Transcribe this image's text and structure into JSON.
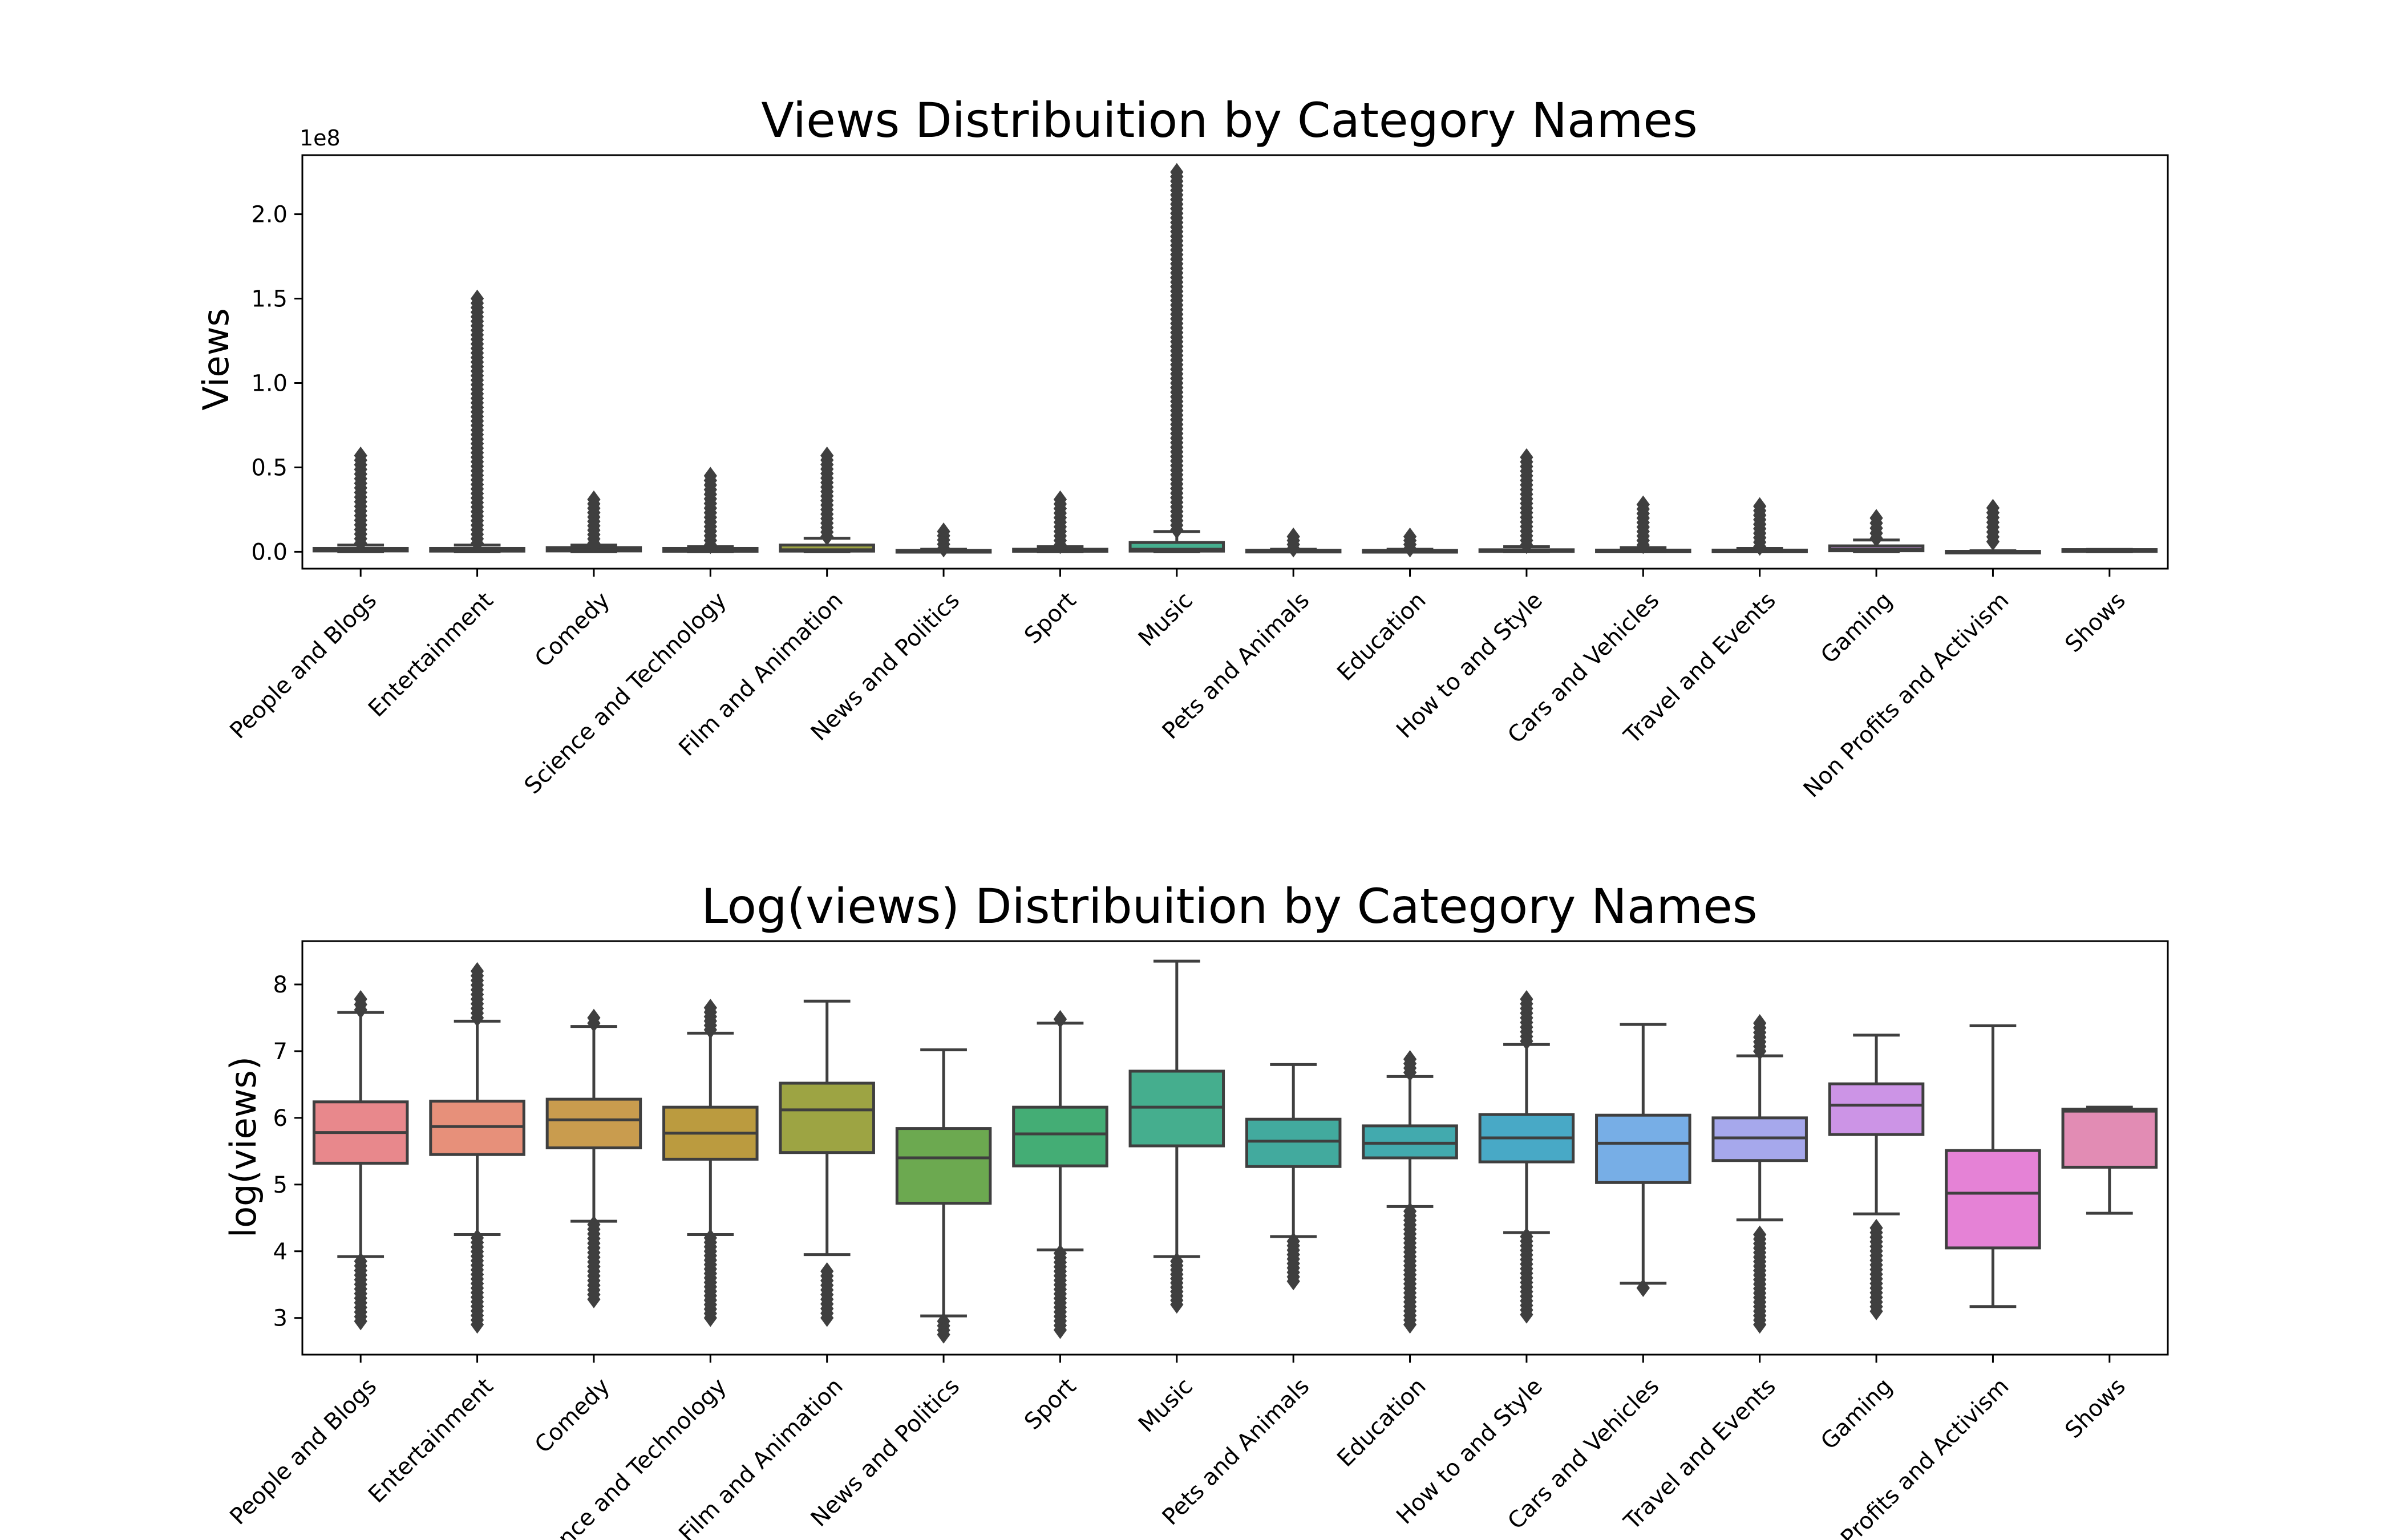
{
  "chart_data": [
    {
      "type": "box",
      "title": "Views Distribuition by Category Names",
      "xlabel": "",
      "ylabel": "Views",
      "y_offset_label": "1e8",
      "y_scale_factor": 100000000,
      "ylim": [
        -0.1,
        2.35
      ],
      "yticks": [
        0.0,
        0.5,
        1.0,
        1.5,
        2.0
      ],
      "ytick_labels": [
        "0.0",
        "0.5",
        "1.0",
        "1.5",
        "2.0"
      ],
      "grid": false,
      "categories": [
        "People and Blogs",
        "Entertainment",
        "Comedy",
        "Science and Technology",
        "Film and Animation",
        "News and Politics",
        "Sport",
        "Music",
        "Pets and Animals",
        "Education",
        "How to and Style",
        "Cars and Vehicles",
        "Travel and Events",
        "Gaming",
        "Non Profits and Activism",
        "Shows"
      ],
      "colors": [
        "#e8888c",
        "#e7907a",
        "#c99c4e",
        "#bb9b3f",
        "#9da443",
        "#6ca950",
        "#44ad75",
        "#45ae8e",
        "#42aa9e",
        "#42aaae",
        "#48a9c6",
        "#77aee6",
        "#a6a8ec",
        "#cc94e6",
        "#e582d6",
        "#e28cb4"
      ],
      "boxes": [
        {
          "q1": 0.005,
          "median": 0.012,
          "q3": 0.02,
          "whisker_low": 0.0,
          "whisker_high": 0.04,
          "outliers_min": 0.05,
          "outliers_max": 0.57
        },
        {
          "q1": 0.004,
          "median": 0.01,
          "q3": 0.02,
          "whisker_low": 0.0,
          "whisker_high": 0.04,
          "outliers_min": 0.05,
          "outliers_max": 1.5
        },
        {
          "q1": 0.005,
          "median": 0.011,
          "q3": 0.025,
          "whisker_low": 0.0,
          "whisker_high": 0.04,
          "outliers_min": 0.05,
          "outliers_max": 0.31
        },
        {
          "q1": 0.003,
          "median": 0.008,
          "q3": 0.02,
          "whisker_low": 0.0,
          "whisker_high": 0.03,
          "outliers_min": 0.04,
          "outliers_max": 0.45
        },
        {
          "q1": 0.004,
          "median": 0.012,
          "q3": 0.04,
          "whisker_low": 0.0,
          "whisker_high": 0.08,
          "outliers_min": 0.09,
          "outliers_max": 0.57
        },
        {
          "q1": 0.001,
          "median": 0.003,
          "q3": 0.008,
          "whisker_low": 0.0,
          "whisker_high": 0.015,
          "outliers_min": 0.02,
          "outliers_max": 0.12
        },
        {
          "q1": 0.003,
          "median": 0.006,
          "q3": 0.015,
          "whisker_low": 0.0,
          "whisker_high": 0.03,
          "outliers_min": 0.04,
          "outliers_max": 0.31
        },
        {
          "q1": 0.004,
          "median": 0.015,
          "q3": 0.055,
          "whisker_low": 0.0,
          "whisker_high": 0.12,
          "outliers_min": 0.13,
          "outliers_max": 2.25
        },
        {
          "q1": 0.002,
          "median": 0.004,
          "q3": 0.009,
          "whisker_low": 0.0,
          "whisker_high": 0.015,
          "outliers_min": 0.02,
          "outliers_max": 0.09
        },
        {
          "q1": 0.002,
          "median": 0.004,
          "q3": 0.008,
          "whisker_low": 0.0,
          "whisker_high": 0.015,
          "outliers_min": 0.02,
          "outliers_max": 0.09
        },
        {
          "q1": 0.002,
          "median": 0.006,
          "q3": 0.012,
          "whisker_low": 0.0,
          "whisker_high": 0.03,
          "outliers_min": 0.04,
          "outliers_max": 0.56
        },
        {
          "q1": 0.001,
          "median": 0.004,
          "q3": 0.01,
          "whisker_low": 0.0,
          "whisker_high": 0.025,
          "outliers_min": 0.04,
          "outliers_max": 0.28
        },
        {
          "q1": 0.002,
          "median": 0.005,
          "q3": 0.01,
          "whisker_low": 0.0,
          "whisker_high": 0.02,
          "outliers_min": 0.03,
          "outliers_max": 0.27
        },
        {
          "q1": 0.006,
          "median": 0.015,
          "q3": 0.035,
          "whisker_low": 0.0,
          "whisker_high": 0.07,
          "outliers_min": 0.08,
          "outliers_max": 0.2
        },
        {
          "q1": 0.0,
          "median": 0.001,
          "q3": 0.003,
          "whisker_low": 0.0,
          "whisker_high": 0.006,
          "outliers_min": 0.06,
          "outliers_max": 0.26
        },
        {
          "q1": 0.002,
          "median": 0.012,
          "q3": 0.013,
          "whisker_low": 0.0,
          "whisker_high": 0.014,
          "outliers_min": null,
          "outliers_max": null
        }
      ]
    },
    {
      "type": "box",
      "title": "Log(views) Distribuition by Category Names",
      "xlabel": "",
      "ylabel": "log(views)",
      "ylim": [
        2.45,
        8.65
      ],
      "yticks": [
        3,
        4,
        5,
        6,
        7,
        8
      ],
      "ytick_labels": [
        "3",
        "4",
        "5",
        "6",
        "7",
        "8"
      ],
      "grid": false,
      "categories": [
        "People and Blogs",
        "Entertainment",
        "Comedy",
        "Science and Technology",
        "Film and Animation",
        "News and Politics",
        "Sport",
        "Music",
        "Pets and Animals",
        "Education",
        "How to and Style",
        "Cars and Vehicles",
        "Travel and Events",
        "Gaming",
        "Non Profits and Activism",
        "Shows"
      ],
      "colors": [
        "#e8888c",
        "#e7907a",
        "#c99c4e",
        "#bb9b3f",
        "#9da443",
        "#6ca950",
        "#44ad75",
        "#45ae8e",
        "#42aa9e",
        "#42aaae",
        "#48a9c6",
        "#77aee6",
        "#a6a8ec",
        "#cc94e6",
        "#e582d6",
        "#e28cb4"
      ],
      "boxes": [
        {
          "q1": 5.32,
          "median": 5.78,
          "q3": 6.24,
          "whisker_low": 3.92,
          "whisker_high": 7.58,
          "outliers_low": [
            2.95,
            3.85
          ],
          "outliers_high": [
            7.62,
            7.78
          ]
        },
        {
          "q1": 5.45,
          "median": 5.87,
          "q3": 6.25,
          "whisker_low": 4.25,
          "whisker_high": 7.45,
          "outliers_low": [
            2.9,
            4.2
          ],
          "outliers_high": [
            7.5,
            8.2
          ]
        },
        {
          "q1": 5.55,
          "median": 5.97,
          "q3": 6.28,
          "whisker_low": 4.45,
          "whisker_high": 7.37,
          "outliers_low": [
            3.28,
            4.4
          ],
          "outliers_high": [
            7.42,
            7.5
          ]
        },
        {
          "q1": 5.38,
          "median": 5.77,
          "q3": 6.16,
          "whisker_low": 4.25,
          "whisker_high": 7.27,
          "outliers_low": [
            3.0,
            4.2
          ],
          "outliers_high": [
            7.32,
            7.65
          ]
        },
        {
          "q1": 5.48,
          "median": 6.12,
          "q3": 6.52,
          "whisker_low": 3.95,
          "whisker_high": 7.75,
          "outliers_low": [
            3.0,
            3.7
          ],
          "outliers_high": []
        },
        {
          "q1": 4.72,
          "median": 5.4,
          "q3": 5.84,
          "whisker_low": 3.03,
          "whisker_high": 7.02,
          "outliers_low": [
            2.75,
            2.95
          ],
          "outliers_high": []
        },
        {
          "q1": 5.28,
          "median": 5.76,
          "q3": 6.16,
          "whisker_low": 4.02,
          "whisker_high": 7.42,
          "outliers_low": [
            2.82,
            3.97
          ],
          "outliers_high": [
            7.48
          ]
        },
        {
          "q1": 5.58,
          "median": 6.16,
          "q3": 6.7,
          "whisker_low": 3.92,
          "whisker_high": 8.35,
          "outliers_low": [
            3.2,
            3.85
          ],
          "outliers_high": []
        },
        {
          "q1": 5.27,
          "median": 5.65,
          "q3": 5.98,
          "whisker_low": 4.22,
          "whisker_high": 6.8,
          "outliers_low": [
            3.55,
            4.15
          ],
          "outliers_high": []
        },
        {
          "q1": 5.4,
          "median": 5.62,
          "q3": 5.88,
          "whisker_low": 4.67,
          "whisker_high": 6.62,
          "outliers_low": [
            2.9,
            4.6
          ],
          "outliers_high": [
            6.68,
            6.88
          ]
        },
        {
          "q1": 5.34,
          "median": 5.7,
          "q3": 6.05,
          "whisker_low": 4.28,
          "whisker_high": 7.1,
          "outliers_low": [
            3.05,
            4.22
          ],
          "outliers_high": [
            7.15,
            7.78
          ]
        },
        {
          "q1": 5.03,
          "median": 5.62,
          "q3": 6.04,
          "whisker_low": 3.52,
          "whisker_high": 7.4,
          "outliers_low": [
            3.45
          ],
          "outliers_high": []
        },
        {
          "q1": 5.36,
          "median": 5.7,
          "q3": 6.0,
          "whisker_low": 4.47,
          "whisker_high": 6.93,
          "outliers_low": [
            2.9,
            4.25
          ],
          "outliers_high": [
            7.0,
            7.42
          ]
        },
        {
          "q1": 5.75,
          "median": 6.19,
          "q3": 6.51,
          "whisker_low": 4.56,
          "whisker_high": 7.24,
          "outliers_low": [
            3.1,
            4.35
          ],
          "outliers_high": []
        },
        {
          "q1": 4.05,
          "median": 4.87,
          "q3": 5.51,
          "whisker_low": 3.17,
          "whisker_high": 7.38,
          "outliers_low": [],
          "outliers_high": []
        },
        {
          "q1": 5.26,
          "median": 6.1,
          "q3": 6.13,
          "whisker_low": 4.57,
          "whisker_high": 6.16,
          "outliers_low": [],
          "outliers_high": []
        }
      ]
    }
  ]
}
